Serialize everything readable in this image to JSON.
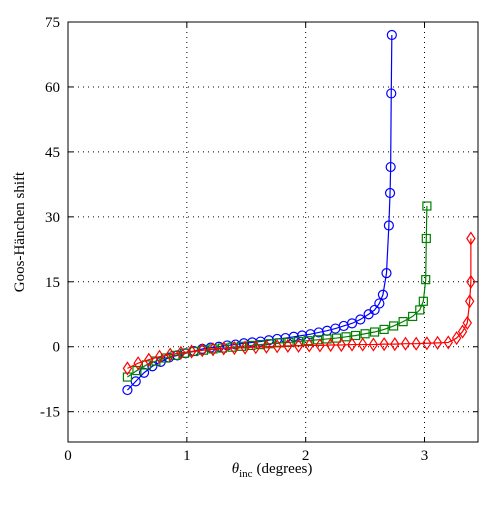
{
  "chart_data": {
    "type": "line",
    "ylabel": "Goos-Hänchen shift",
    "xlabel": {
      "symbol": "θ",
      "subscript": "inc",
      "unit": "(degrees)"
    },
    "xlim": [
      0,
      3.45
    ],
    "ylim": [
      -22,
      75
    ],
    "xticks": [
      0,
      1,
      2,
      3
    ],
    "yticks": [
      -15,
      0,
      15,
      30,
      45,
      60,
      75
    ],
    "grid": true,
    "series": [
      {
        "color": "#0000ff",
        "marker": "circle",
        "x": [
          0.5,
          0.57,
          0.64,
          0.71,
          0.78,
          0.85,
          0.92,
          0.99,
          1.06,
          1.13,
          1.2,
          1.27,
          1.34,
          1.41,
          1.48,
          1.55,
          1.62,
          1.69,
          1.76,
          1.83,
          1.9,
          1.97,
          2.04,
          2.11,
          2.18,
          2.25,
          2.32,
          2.39,
          2.46,
          2.53,
          2.58,
          2.62,
          2.65,
          2.68,
          2.7,
          2.71,
          2.715,
          2.72,
          2.725
        ],
        "values": [
          -10,
          -8,
          -6,
          -4.5,
          -3.5,
          -2.5,
          -2,
          -1.5,
          -1,
          -0.5,
          -0.2,
          0,
          0.3,
          0.5,
          0.8,
          1,
          1.2,
          1.5,
          1.8,
          2,
          2.3,
          2.6,
          2.9,
          3.3,
          3.7,
          4.2,
          4.8,
          5.4,
          6.3,
          7.5,
          8.5,
          10,
          12,
          17,
          28,
          35.5,
          41.5,
          58.5,
          72
        ]
      },
      {
        "color": "#008000",
        "marker": "square",
        "x": [
          0.5,
          0.58,
          0.66,
          0.74,
          0.82,
          0.9,
          0.98,
          1.06,
          1.14,
          1.22,
          1.3,
          1.38,
          1.46,
          1.54,
          1.62,
          1.7,
          1.78,
          1.86,
          1.94,
          2.02,
          2.1,
          2.18,
          2.26,
          2.34,
          2.42,
          2.5,
          2.58,
          2.66,
          2.74,
          2.82,
          2.9,
          2.96,
          2.99,
          3.01,
          3.015,
          3.02
        ],
        "values": [
          -7,
          -5.5,
          -4.2,
          -3.3,
          -2.6,
          -2,
          -1.5,
          -1.1,
          -0.8,
          -0.5,
          -0.3,
          -0.1,
          0.1,
          0.3,
          0.5,
          0.7,
          0.9,
          1,
          1.2,
          1.4,
          1.6,
          1.8,
          2,
          2.3,
          2.6,
          3,
          3.4,
          4,
          4.8,
          5.8,
          7,
          8.5,
          10.5,
          15.5,
          25,
          32.5
        ]
      },
      {
        "color": "#ff0000",
        "marker": "diamond",
        "x": [
          0.5,
          0.59,
          0.68,
          0.77,
          0.86,
          0.95,
          1.04,
          1.13,
          1.22,
          1.31,
          1.4,
          1.49,
          1.58,
          1.67,
          1.76,
          1.85,
          1.94,
          2.03,
          2.12,
          2.21,
          2.3,
          2.39,
          2.48,
          2.57,
          2.66,
          2.75,
          2.84,
          2.93,
          3.02,
          3.11,
          3.2,
          3.27,
          3.32,
          3.36,
          3.38,
          3.39,
          3.39
        ],
        "values": [
          -5,
          -3.8,
          -3,
          -2.3,
          -1.8,
          -1.4,
          -1.1,
          -0.8,
          -0.6,
          -0.4,
          -0.3,
          -0.2,
          -0.1,
          0,
          0.1,
          0.2,
          0.2,
          0.3,
          0.3,
          0.4,
          0.4,
          0.5,
          0.5,
          0.5,
          0.6,
          0.6,
          0.7,
          0.7,
          0.8,
          0.9,
          1,
          2,
          3.5,
          5.5,
          10.5,
          15,
          25
        ]
      }
    ]
  }
}
